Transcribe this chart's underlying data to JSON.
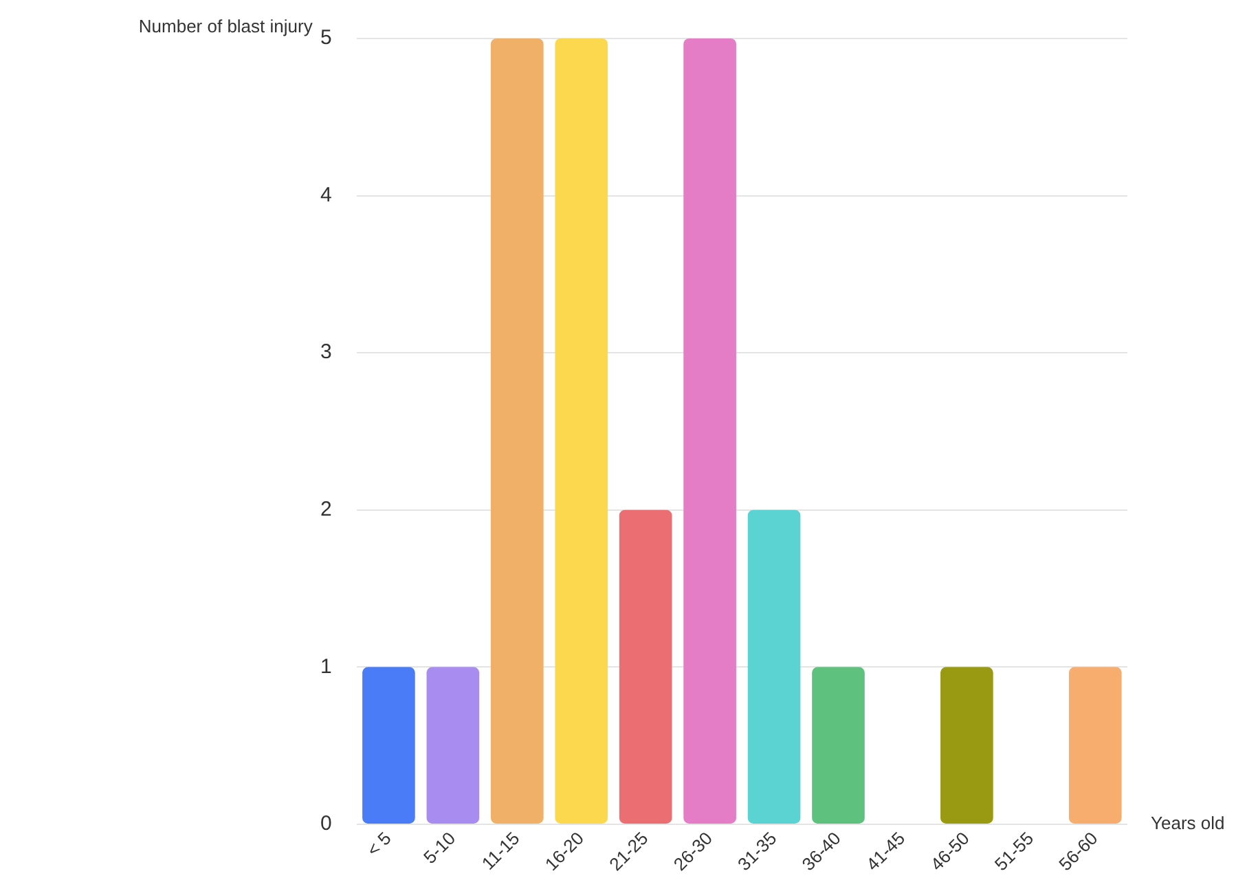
{
  "chart_data": {
    "type": "bar",
    "ylabel": "Number of blast injury",
    "xlabel": "Years old",
    "categories": [
      "< 5",
      "5-10",
      "11-15",
      "16-20",
      "21-25",
      "26-30",
      "31-35",
      "36-40",
      "41-45",
      "46-50",
      "51-55",
      "56-60"
    ],
    "values": [
      1,
      1,
      5,
      5,
      2,
      5,
      2,
      1,
      0,
      1,
      0,
      1
    ],
    "colors": [
      "#4a7cf7",
      "#a98cf0",
      "#f0b068",
      "#fbd84e",
      "#ea6e72",
      "#e47cc6",
      "#5bd3d3",
      "#5ec27e",
      "#cccccc",
      "#9a9a12",
      "#cccccc",
      "#f7ad6e"
    ],
    "ylim": [
      0,
      5
    ],
    "yticks": [
      0,
      1,
      2,
      3,
      4,
      5
    ],
    "grid": "y",
    "legend": false
  }
}
